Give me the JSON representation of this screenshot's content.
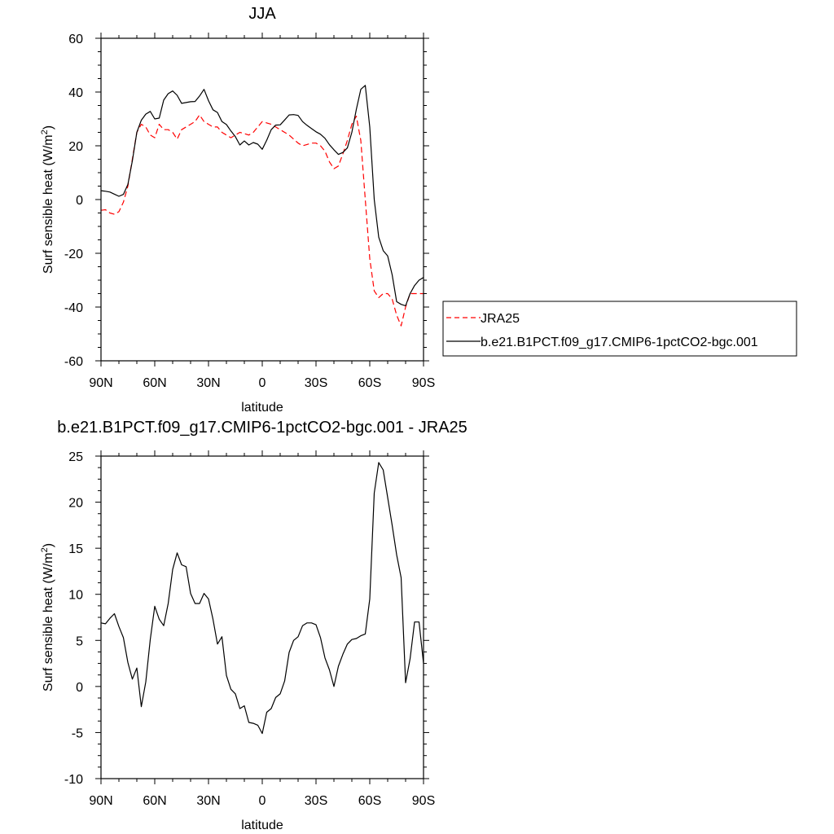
{
  "chart_data": [
    {
      "type": "line",
      "title": "JJA",
      "xlabel": "latitude",
      "ylabel": "Surf sensible heat (W/m",
      "ylabel_sup": "2",
      "ylabel_close": ")",
      "xlim": [
        90,
        -90
      ],
      "ylim": [
        -60,
        60
      ],
      "xticks": [
        90,
        60,
        30,
        0,
        -30,
        -60,
        -90
      ],
      "xtick_labels": [
        "90N",
        "60N",
        "30N",
        "0",
        "30S",
        "60S",
        "90S"
      ],
      "yticks": [
        -60,
        -40,
        -20,
        0,
        20,
        40,
        60
      ],
      "ytick_labels": [
        "-60",
        "-40",
        "-20",
        "0",
        "20",
        "40",
        "60"
      ],
      "legend_placement": "right, outside plot",
      "series": [
        {
          "name": "JRA25",
          "color": "#ff0000",
          "dash": "dashed",
          "x": [
            90,
            87.5,
            85,
            82.5,
            80,
            77.5,
            75,
            72.5,
            70,
            67.5,
            65,
            62.5,
            60,
            57.5,
            55,
            52.5,
            50,
            47.5,
            45,
            42.5,
            40,
            37.5,
            35,
            32.5,
            30,
            27.5,
            25,
            22.5,
            20,
            17.5,
            15,
            12.5,
            10,
            7.5,
            5,
            2.5,
            0,
            -2.5,
            -5,
            -7.5,
            -10,
            -12.5,
            -15,
            -17.5,
            -20,
            -22.5,
            -25,
            -27.5,
            -30,
            -32.5,
            -35,
            -37.5,
            -40,
            -42.5,
            -45,
            -47.5,
            -50,
            -52.5,
            -55,
            -57.5,
            -60,
            -62.5,
            -65,
            -67.5,
            -70,
            -72.5,
            -75,
            -77.5,
            -80,
            -82.5,
            -85,
            -87.5,
            -90
          ],
          "y": [
            -4,
            -3.8,
            -5,
            -5.5,
            -4.5,
            -1,
            5,
            15,
            25,
            28,
            27,
            24,
            23,
            28,
            26,
            26,
            25,
            22.5,
            26,
            27,
            28,
            29,
            31.5,
            29,
            28,
            27,
            27,
            25,
            24,
            23,
            24,
            25,
            24.5,
            24,
            25,
            27,
            29,
            28.5,
            28,
            27,
            26,
            25,
            24,
            22.5,
            21,
            20,
            20.5,
            21,
            21,
            20,
            18,
            14,
            11.5,
            12.5,
            17,
            22,
            28,
            31,
            22,
            0,
            -22,
            -34,
            -36.5,
            -35,
            -35,
            -37,
            -43,
            -47,
            -40,
            -35,
            -35,
            -35,
            -35
          ]
        },
        {
          "name": "b.e21.B1PCT.f09_g17.CMIP6-1pctCO2-bgc.001",
          "color": "#000000",
          "dash": "solid",
          "x": [
            90,
            87.5,
            85,
            82.5,
            80,
            77.5,
            75,
            72.5,
            70,
            67.5,
            65,
            62.5,
            60,
            57.5,
            55,
            52.5,
            50,
            47.5,
            45,
            42.5,
            40,
            37.5,
            35,
            32.5,
            30,
            27.5,
            25,
            22.5,
            20,
            17.5,
            15,
            12.5,
            10,
            7.5,
            5,
            2.5,
            0,
            -2.5,
            -5,
            -7.5,
            -10,
            -12.5,
            -15,
            -17.5,
            -20,
            -22.5,
            -25,
            -27.5,
            -30,
            -32.5,
            -35,
            -37.5,
            -40,
            -42.5,
            -45,
            -47.5,
            -50,
            -52.5,
            -55,
            -57.5,
            -60,
            -62.5,
            -65,
            -67.5,
            -70,
            -72.5,
            -75,
            -77.5,
            -80,
            -82.5,
            -85,
            -87.5,
            -90
          ],
          "y": [
            3.3,
            3.1,
            2.8,
            2,
            1.2,
            1.9,
            5.6,
            14.4,
            25,
            29.5,
            31.8,
            32.8,
            30,
            30.3,
            37,
            39.4,
            40.4,
            38.8,
            35.8,
            36.1,
            36.4,
            36.5,
            38.5,
            41,
            36.8,
            33.4,
            32.4,
            29,
            27.9,
            25.5,
            23.4,
            20.3,
            21.8,
            20.3,
            21.2,
            20.6,
            18.7,
            22.1,
            26,
            27.7,
            27.8,
            29.6,
            31.5,
            31.6,
            31.3,
            29,
            27.6,
            26.4,
            25.2,
            24.3,
            22.8,
            20.4,
            18.5,
            16.8,
            17.5,
            19.2,
            25,
            33.5,
            41,
            42.5,
            27,
            0,
            -14,
            -19,
            -21,
            -28,
            -38,
            -39,
            -39.5,
            -35,
            -32,
            -30,
            -29
          ]
        }
      ]
    },
    {
      "type": "line",
      "title": "b.e21.B1PCT.f09_g17.CMIP6-1pctCO2-bgc.001 - JRA25",
      "xlabel": "latitude",
      "ylabel": "Surf sensible heat (W/m",
      "ylabel_sup": "2",
      "ylabel_close": ")",
      "xlim": [
        90,
        -90
      ],
      "ylim": [
        -10,
        25
      ],
      "xticks": [
        90,
        60,
        30,
        0,
        -30,
        -60,
        -90
      ],
      "xtick_labels": [
        "90N",
        "60N",
        "30N",
        "0",
        "30S",
        "60S",
        "90S"
      ],
      "yticks": [
        -10,
        -5,
        0,
        5,
        10,
        15,
        20,
        25
      ],
      "ytick_labels": [
        "-10",
        "-5",
        "0",
        "5",
        "10",
        "15",
        "20",
        "25"
      ],
      "series": [
        {
          "color": "#000000",
          "dash": "solid",
          "x": [
            90,
            87.5,
            85,
            82.5,
            80,
            77.5,
            75,
            72.5,
            70,
            67.5,
            65,
            62.5,
            60,
            57.5,
            55,
            52.5,
            50,
            47.5,
            45,
            42.5,
            40,
            37.5,
            35,
            32.5,
            30,
            27.5,
            25,
            22.5,
            20,
            17.5,
            15,
            12.5,
            10,
            7.5,
            5,
            2.5,
            0,
            -2.5,
            -5,
            -7.5,
            -10,
            -12.5,
            -15,
            -17.5,
            -20,
            -22.5,
            -25,
            -27.5,
            -30,
            -32.5,
            -35,
            -37.5,
            -40,
            -42.5,
            -45,
            -47.5,
            -50,
            -52.5,
            -55,
            -57.5,
            -60,
            -62.5,
            -65,
            -67.5,
            -70,
            -72.5,
            -75,
            -77.5,
            -80,
            -82.5,
            -85,
            -87.5,
            -90
          ],
          "y": [
            6.9,
            6.8,
            7.4,
            7.9,
            6.5,
            5.3,
            2.6,
            0.8,
            2,
            -2.2,
            0.5,
            5.1,
            8.7,
            7.3,
            6.6,
            9,
            12.7,
            14.5,
            13.2,
            13,
            10.1,
            9,
            9,
            10.1,
            9.5,
            7.3,
            4.6,
            5.4,
            1.2,
            -0.3,
            -0.8,
            -2.4,
            -2.1,
            -3.9,
            -4,
            -4.2,
            -5.1,
            -2.8,
            -2.4,
            -1.2,
            -0.8,
            0.6,
            3.7,
            5,
            5.4,
            6.6,
            6.9,
            6.9,
            6.7,
            5.3,
            3.1,
            1.8,
            0,
            2.2,
            3.5,
            4.6,
            5.1,
            5.2,
            5.5,
            5.7,
            9.5,
            21,
            24.3,
            23.5,
            20.5,
            17.5,
            14.3,
            11.8,
            0.4,
            3,
            7,
            7,
            2.5
          ]
        }
      ]
    }
  ]
}
